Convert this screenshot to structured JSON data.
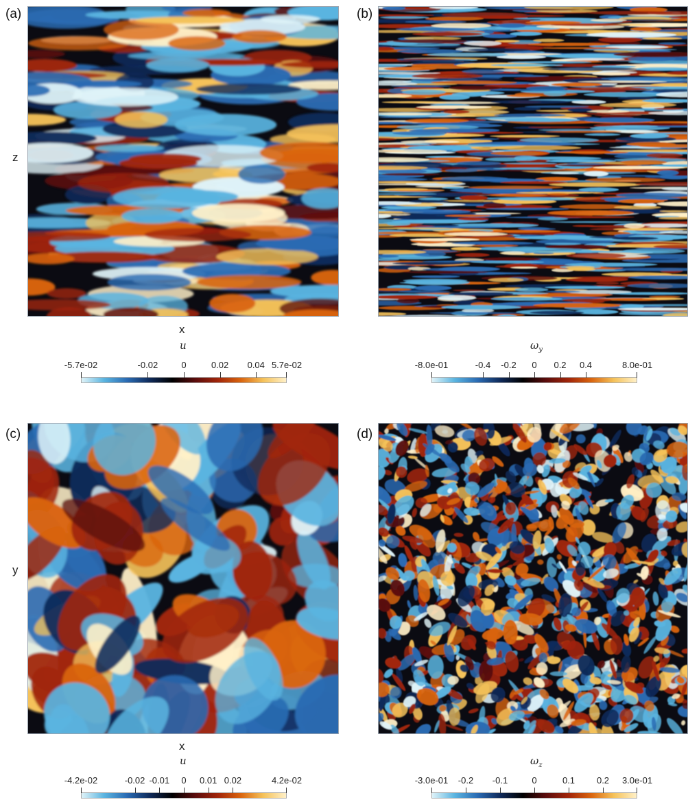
{
  "panels": [
    {
      "id": "a",
      "label": "(a)",
      "xlabel": "x",
      "ylabel": "z",
      "pattern": "streaks-wide"
    },
    {
      "id": "b",
      "label": "(b)",
      "xlabel": "",
      "ylabel": "",
      "pattern": "streaks-fine"
    },
    {
      "id": "c",
      "label": "(c)",
      "xlabel": "x",
      "ylabel": "y",
      "pattern": "blobs"
    },
    {
      "id": "d",
      "label": "(d)",
      "xlabel": "",
      "ylabel": "",
      "pattern": "turbulent"
    }
  ],
  "colorbars": [
    {
      "symbol": "u",
      "subscript": "",
      "min": -0.057,
      "max": 0.057,
      "ticks": [
        {
          "value": -0.057,
          "label": "-5.7e-02"
        },
        {
          "value": -0.02,
          "label": "-0.02"
        },
        {
          "value": 0,
          "label": "0"
        },
        {
          "value": 0.02,
          "label": "0.02"
        },
        {
          "value": 0.04,
          "label": "0.04"
        },
        {
          "value": 0.057,
          "label": "5.7e-02"
        }
      ]
    },
    {
      "symbol": "ω",
      "subscript": "y",
      "min": -0.8,
      "max": 0.8,
      "ticks": [
        {
          "value": -0.8,
          "label": "-8.0e-01"
        },
        {
          "value": -0.4,
          "label": "-0.4"
        },
        {
          "value": -0.2,
          "label": "-0.2"
        },
        {
          "value": 0,
          "label": "0"
        },
        {
          "value": 0.2,
          "label": "0.2"
        },
        {
          "value": 0.4,
          "label": "0.4"
        },
        {
          "value": 0.8,
          "label": "8.0e-01"
        }
      ]
    },
    {
      "symbol": "u",
      "subscript": "",
      "min": -0.042,
      "max": 0.042,
      "ticks": [
        {
          "value": -0.042,
          "label": "-4.2e-02"
        },
        {
          "value": -0.02,
          "label": "-0.02"
        },
        {
          "value": -0.01,
          "label": "-0.01"
        },
        {
          "value": 0,
          "label": "0"
        },
        {
          "value": 0.01,
          "label": "0.01"
        },
        {
          "value": 0.02,
          "label": "0.02"
        },
        {
          "value": 0.042,
          "label": "4.2e-02"
        }
      ]
    },
    {
      "symbol": "ω",
      "subscript": "z",
      "min": -0.3,
      "max": 0.3,
      "ticks": [
        {
          "value": -0.3,
          "label": "-3.0e-01"
        },
        {
          "value": -0.2,
          "label": "-0.2"
        },
        {
          "value": -0.1,
          "label": "-0.1"
        },
        {
          "value": 0,
          "label": "0"
        },
        {
          "value": 0.1,
          "label": "0.1"
        },
        {
          "value": 0.2,
          "label": "0.2"
        },
        {
          "value": 0.3,
          "label": "3.0e-01"
        }
      ]
    }
  ],
  "colormap": [
    "#dff3f8",
    "#5ab4e0",
    "#2a6bb3",
    "#0f2a5a",
    "#000000",
    "#5a0c0c",
    "#a1250a",
    "#d9640e",
    "#f5c25a",
    "#fff0c8"
  ]
}
